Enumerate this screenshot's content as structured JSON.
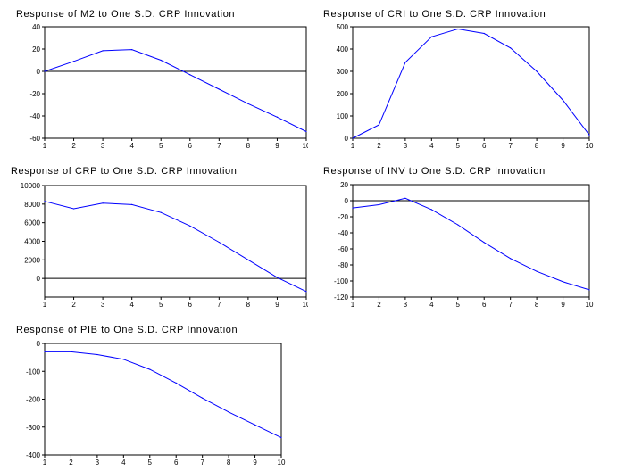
{
  "chart_data": [
    {
      "type": "line",
      "title": "Response of M2 to One S.D. CRP Innovation",
      "x": [
        1,
        2,
        3,
        4,
        5,
        6,
        7,
        8,
        9,
        10
      ],
      "series": [
        {
          "values": [
            0,
            9,
            18.5,
            19.5,
            10,
            -3,
            -16,
            -29,
            -41,
            -54
          ]
        }
      ],
      "xlim": [
        1,
        10
      ],
      "ylim": [
        -60,
        40
      ],
      "yticks": [
        40,
        20,
        0,
        -20,
        -40,
        -60
      ],
      "zero_line": true,
      "line_color": "#0000ff"
    },
    {
      "type": "line",
      "title": "Response of CRI to One S.D. CRP Innovation",
      "x": [
        1,
        2,
        3,
        4,
        5,
        6,
        7,
        8,
        9,
        10
      ],
      "series": [
        {
          "values": [
            0,
            60,
            340,
            455,
            490,
            470,
            405,
            300,
            170,
            15
          ]
        }
      ],
      "xlim": [
        1,
        10
      ],
      "ylim": [
        0,
        500
      ],
      "yticks": [
        500,
        400,
        300,
        200,
        100,
        0
      ],
      "zero_line": false,
      "line_color": "#0000ff"
    },
    {
      "type": "line",
      "title": "Response of CRP to One S.D. CRP Innovation",
      "x": [
        1,
        2,
        3,
        4,
        5,
        6,
        7,
        8,
        9,
        10
      ],
      "series": [
        {
          "values": [
            8300,
            7500,
            8100,
            7950,
            7100,
            5650,
            3900,
            2000,
            100,
            -1400
          ]
        }
      ],
      "xlim": [
        1,
        10
      ],
      "ylim": [
        -2000,
        10000
      ],
      "yticks": [
        10000,
        8000,
        6000,
        4000,
        2000,
        0
      ],
      "zero_line": true,
      "line_color": "#0000ff"
    },
    {
      "type": "line",
      "title": "Response of INV to One S.D. CRP Innovation",
      "x": [
        1,
        2,
        3,
        4,
        5,
        6,
        7,
        8,
        9,
        10
      ],
      "series": [
        {
          "values": [
            -9,
            -5,
            3,
            -11,
            -30,
            -52,
            -72,
            -88,
            -101,
            -111
          ]
        }
      ],
      "xlim": [
        1,
        10
      ],
      "ylim": [
        -120,
        20
      ],
      "yticks": [
        20,
        0,
        -20,
        -40,
        -60,
        -80,
        -100,
        -120
      ],
      "zero_line": true,
      "line_color": "#0000ff"
    },
    {
      "type": "line",
      "title": "Response of PIB to One S.D. CRP Innovation",
      "x": [
        1,
        2,
        3,
        4,
        5,
        6,
        7,
        8,
        9,
        10
      ],
      "series": [
        {
          "values": [
            -30,
            -30,
            -40,
            -57,
            -93,
            -142,
            -196,
            -246,
            -292,
            -338
          ]
        }
      ],
      "xlim": [
        1,
        10
      ],
      "ylim": [
        -400,
        0
      ],
      "yticks": [
        0,
        -100,
        -200,
        -300,
        -400
      ],
      "zero_line": false,
      "line_color": "#0000ff"
    }
  ]
}
